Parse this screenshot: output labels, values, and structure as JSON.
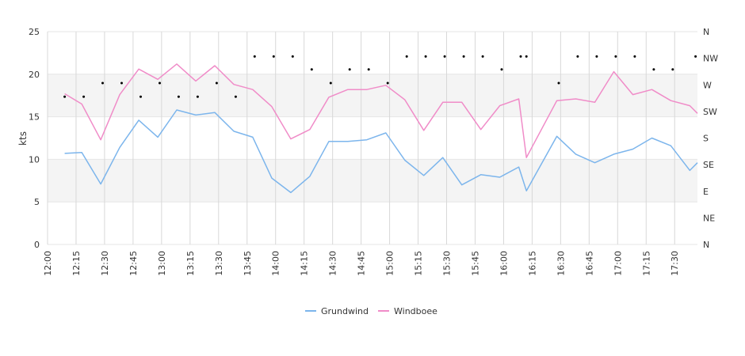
{
  "chart_data": {
    "type": "line",
    "xlabel": "",
    "ylabel": "kts",
    "ylim": [
      0,
      25
    ],
    "y_ticks": [
      "0",
      "5",
      "10",
      "15",
      "20",
      "25"
    ],
    "y_tick_values": [
      0,
      5,
      10,
      15,
      20,
      25
    ],
    "x_range": [
      "12:00",
      "17:42"
    ],
    "x_ticks": [
      "12:00",
      "12:15",
      "12:30",
      "12:45",
      "13:00",
      "13:15",
      "13:30",
      "13:45",
      "14:00",
      "14:15",
      "14:30",
      "14:45",
      "15:00",
      "15:15",
      "15:30",
      "15:45",
      "16:00",
      "16:15",
      "16:30",
      "16:45",
      "17:00",
      "17:15",
      "17:30"
    ],
    "right_axis": {
      "label": "",
      "ylim": [
        0,
        360
      ],
      "ticks": [
        "N",
        "NE",
        "E",
        "SE",
        "S",
        "SW",
        "W",
        "NW",
        "N"
      ],
      "tick_values": [
        0,
        45,
        90,
        135,
        180,
        225,
        270,
        315,
        360
      ]
    },
    "grid": true,
    "shaded_bands": [
      [
        5,
        10
      ],
      [
        15,
        20
      ]
    ],
    "legend_position": "bottom-center",
    "colors": {
      "Grundwind": "#7cb5ec",
      "Windboee": "#f08cc8",
      "direction": "#000000"
    },
    "series": [
      {
        "name": "Grundwind",
        "x": [
          "12:09",
          "12:18",
          "12:28",
          "12:38",
          "12:48",
          "12:58",
          "13:08",
          "13:18",
          "13:28",
          "13:38",
          "13:48",
          "13:58",
          "14:08",
          "14:18",
          "14:28",
          "14:38",
          "14:48",
          "14:58",
          "15:08",
          "15:18",
          "15:28",
          "15:38",
          "15:48",
          "15:58",
          "16:08",
          "16:12",
          "16:28",
          "16:38",
          "16:48",
          "16:58",
          "17:08",
          "17:18",
          "17:28",
          "17:38",
          "17:42"
        ],
        "values": [
          10.7,
          10.8,
          7.1,
          11.4,
          14.6,
          12.6,
          15.8,
          15.2,
          15.5,
          13.3,
          12.6,
          7.8,
          6.1,
          8.0,
          12.1,
          12.1,
          12.3,
          13.1,
          9.9,
          8.1,
          10.2,
          7.0,
          8.2,
          7.9,
          9.1,
          6.3,
          12.7,
          10.6,
          9.6,
          10.6,
          11.2,
          12.5,
          11.6,
          8.7,
          9.6
        ]
      },
      {
        "name": "Windboee",
        "x": [
          "12:09",
          "12:18",
          "12:28",
          "12:38",
          "12:48",
          "12:58",
          "13:08",
          "13:18",
          "13:28",
          "13:38",
          "13:48",
          "13:58",
          "14:08",
          "14:18",
          "14:28",
          "14:38",
          "14:48",
          "14:58",
          "15:08",
          "15:18",
          "15:28",
          "15:38",
          "15:48",
          "15:58",
          "16:08",
          "16:12",
          "16:28",
          "16:38",
          "16:48",
          "16:58",
          "17:08",
          "17:18",
          "17:28",
          "17:38",
          "17:42"
        ],
        "values": [
          17.7,
          16.5,
          12.3,
          17.6,
          20.6,
          19.4,
          21.2,
          19.2,
          21.0,
          18.8,
          18.2,
          16.2,
          12.4,
          13.5,
          17.3,
          18.2,
          18.2,
          18.7,
          17.0,
          13.4,
          16.7,
          16.7,
          13.5,
          16.3,
          17.1,
          10.2,
          16.9,
          17.1,
          16.7,
          20.3,
          17.6,
          18.2,
          16.9,
          16.3,
          15.4
        ]
      },
      {
        "name": "",
        "type": "scatter",
        "axis": "right",
        "x": [
          "12:09",
          "12:19",
          "12:29",
          "12:39",
          "12:49",
          "12:59",
          "13:09",
          "13:19",
          "13:29",
          "13:39",
          "13:49",
          "13:59",
          "14:09",
          "14:19",
          "14:29",
          "14:39",
          "14:49",
          "14:59",
          "15:09",
          "15:19",
          "15:29",
          "15:39",
          "15:49",
          "15:59",
          "16:09",
          "16:12",
          "16:29",
          "16:39",
          "16:49",
          "16:59",
          "17:09",
          "17:19",
          "17:29",
          "17:41"
        ],
        "values": [
          250,
          250,
          273,
          273,
          250,
          273,
          250,
          250,
          273,
          250,
          318,
          318,
          318,
          296,
          273,
          296,
          296,
          273,
          318,
          318,
          318,
          318,
          318,
          296,
          318,
          318,
          273,
          318,
          318,
          318,
          318,
          296,
          296,
          318
        ]
      }
    ]
  }
}
